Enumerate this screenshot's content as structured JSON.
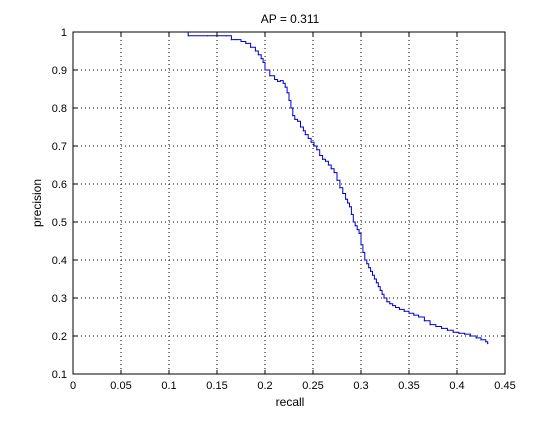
{
  "chart_data": {
    "type": "line",
    "title": "AP = 0.311",
    "xlabel": "recall",
    "ylabel": "precision",
    "xlim": [
      0,
      0.45
    ],
    "ylim": [
      0.1,
      1
    ],
    "xticks": [
      "0",
      "0.05",
      "0.1",
      "0.15",
      "0.2",
      "0.25",
      "0.3",
      "0.35",
      "0.4",
      "0.45"
    ],
    "yticks": [
      "0.1",
      "0.2",
      "0.3",
      "0.4",
      "0.5",
      "0.6",
      "0.7",
      "0.8",
      "0.9",
      "1"
    ],
    "grid": true,
    "grid_style": "dotted",
    "line_style": "stairs",
    "colors": {
      "series": "#0000cc",
      "axes": "#000000",
      "grid": "#000000",
      "background": "#ffffff"
    },
    "series": [
      {
        "x": [
          0.118,
          0.12,
          0.14,
          0.16,
          0.165,
          0.17,
          0.175,
          0.18,
          0.185,
          0.19,
          0.193,
          0.196,
          0.198,
          0.2,
          0.205,
          0.21,
          0.213,
          0.216,
          0.219,
          0.221,
          0.223,
          0.225,
          0.227,
          0.229,
          0.231,
          0.234,
          0.237,
          0.24,
          0.242,
          0.245,
          0.248,
          0.251,
          0.254,
          0.257,
          0.26,
          0.263,
          0.266,
          0.269,
          0.272,
          0.275,
          0.278,
          0.281,
          0.284,
          0.286,
          0.288,
          0.29,
          0.292,
          0.294,
          0.296,
          0.298,
          0.3,
          0.302,
          0.304,
          0.306,
          0.308,
          0.31,
          0.312,
          0.314,
          0.316,
          0.318,
          0.32,
          0.322,
          0.324,
          0.327,
          0.33,
          0.333,
          0.336,
          0.34,
          0.345,
          0.35,
          0.355,
          0.36,
          0.366,
          0.372,
          0.378,
          0.384,
          0.39,
          0.396,
          0.402,
          0.408,
          0.414,
          0.42,
          0.425,
          0.43,
          0.432
        ],
        "y": [
          1.0,
          0.99,
          0.99,
          0.99,
          0.98,
          0.98,
          0.975,
          0.97,
          0.96,
          0.95,
          0.94,
          0.93,
          0.92,
          0.9,
          0.885,
          0.875,
          0.87,
          0.872,
          0.865,
          0.855,
          0.84,
          0.82,
          0.8,
          0.78,
          0.77,
          0.765,
          0.75,
          0.74,
          0.73,
          0.72,
          0.71,
          0.7,
          0.69,
          0.675,
          0.665,
          0.66,
          0.65,
          0.64,
          0.63,
          0.61,
          0.59,
          0.575,
          0.56,
          0.55,
          0.54,
          0.52,
          0.5,
          0.49,
          0.48,
          0.47,
          0.44,
          0.42,
          0.4,
          0.39,
          0.38,
          0.37,
          0.36,
          0.35,
          0.34,
          0.33,
          0.32,
          0.31,
          0.3,
          0.29,
          0.285,
          0.28,
          0.275,
          0.27,
          0.265,
          0.26,
          0.255,
          0.25,
          0.24,
          0.23,
          0.225,
          0.22,
          0.215,
          0.21,
          0.207,
          0.205,
          0.2,
          0.195,
          0.19,
          0.185,
          0.18
        ]
      }
    ]
  }
}
